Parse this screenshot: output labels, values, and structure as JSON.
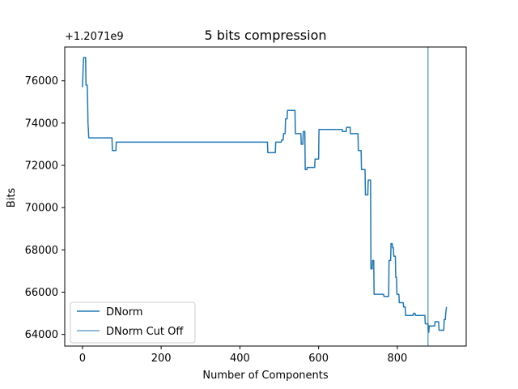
{
  "chart_data": {
    "type": "line",
    "title": "5 bits compression",
    "xlabel": "Number of Components",
    "ylabel": "Bits",
    "offset_label": "+1.2071e9",
    "xlim": [
      -45,
      975
    ],
    "ylim": [
      63450,
      77600
    ],
    "xticks": [
      0,
      200,
      400,
      600,
      800
    ],
    "yticks": [
      64000,
      66000,
      68000,
      70000,
      72000,
      74000,
      76000
    ],
    "grid": false,
    "legend_position": "lower-left",
    "colors": {
      "series": "#1f77b4",
      "cutoff": "#1f77b4",
      "frame": "#000000"
    },
    "series": [
      {
        "name": "DNorm",
        "x": [
          0,
          1,
          2,
          3,
          8,
          9,
          12,
          13,
          14,
          15,
          16,
          18,
          75,
          76,
          85,
          86,
          470,
          471,
          490,
          491,
          505,
          506,
          510,
          511,
          515,
          516,
          520,
          521,
          530,
          531,
          540,
          541,
          555,
          556,
          560,
          561,
          565,
          566,
          570,
          571,
          590,
          591,
          600,
          601,
          660,
          661,
          670,
          671,
          680,
          681,
          700,
          701,
          708,
          709,
          712,
          713,
          718,
          719,
          725,
          726,
          732,
          733,
          736,
          737,
          740,
          741,
          765,
          766,
          778,
          779,
          783,
          784,
          787,
          788,
          790,
          791,
          795,
          796,
          798,
          799,
          804,
          805,
          815,
          816,
          820,
          821,
          830,
          831,
          840,
          841,
          845,
          846,
          860,
          861,
          870,
          871,
          878,
          879,
          880,
          881,
          895,
          896,
          905,
          906,
          918,
          919,
          922,
          923,
          925
        ],
        "y": [
          75700,
          76200,
          76700,
          77100,
          77100,
          75800,
          75800,
          75200,
          74000,
          73700,
          73300,
          73300,
          73300,
          72700,
          72700,
          73100,
          73100,
          72600,
          72600,
          73100,
          73100,
          73200,
          73200,
          73500,
          73500,
          74200,
          74200,
          74600,
          74600,
          74600,
          74600,
          73500,
          73500,
          73000,
          73000,
          73600,
          73600,
          71800,
          71800,
          71900,
          71900,
          72300,
          72300,
          73700,
          73700,
          73600,
          73600,
          73800,
          73800,
          73500,
          73500,
          72700,
          72700,
          71800,
          71800,
          71800,
          71800,
          70600,
          70600,
          71300,
          71300,
          67100,
          67100,
          67500,
          67500,
          65900,
          65900,
          65800,
          65800,
          67500,
          67500,
          68300,
          68300,
          68100,
          68100,
          67700,
          67700,
          66700,
          66700,
          65900,
          65900,
          65500,
          65500,
          65300,
          65300,
          64900,
          64900,
          64900,
          64900,
          65000,
          65000,
          64900,
          64900,
          64900,
          64900,
          64500,
          64500,
          64100,
          64100,
          64400,
          64400,
          64600,
          64600,
          64200,
          64200,
          64700,
          64700,
          65000,
          65300
        ]
      },
      {
        "name": "DNorm Cut Off",
        "type": "vline",
        "x": 878
      }
    ]
  }
}
